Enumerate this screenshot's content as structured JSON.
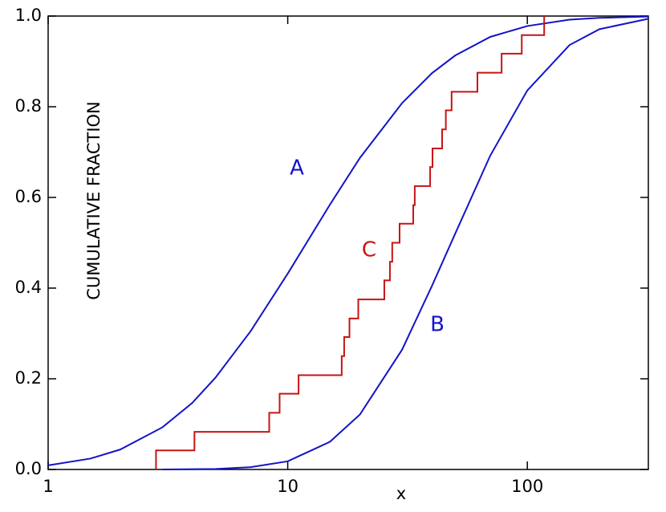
{
  "chart_data": {
    "type": "line",
    "x_label": "x",
    "y_label": "CUMULATIVE  FRACTION",
    "log_x": true,
    "xlim": [
      1,
      320
    ],
    "ylim": [
      0,
      1
    ],
    "xticks": [
      1,
      10,
      100
    ],
    "yticks": [
      {
        "value": 0,
        "label": "0.0"
      },
      {
        "value": 0.2,
        "label": "0.2"
      },
      {
        "value": 0.4,
        "label": "0.4"
      },
      {
        "value": 0.6,
        "label": "0.6"
      },
      {
        "value": 0.8,
        "label": "0.8"
      },
      {
        "value": 1,
        "label": "1.0"
      }
    ],
    "series": [
      {
        "name": "A",
        "color": "#1414c8",
        "step": false,
        "x": [
          1,
          1.5,
          2,
          3,
          4,
          5,
          7,
          10,
          15,
          20,
          30,
          40,
          50,
          70,
          100,
          150,
          200,
          320
        ],
        "values": [
          0.009,
          0.024,
          0.044,
          0.093,
          0.147,
          0.203,
          0.305,
          0.432,
          0.584,
          0.687,
          0.808,
          0.874,
          0.913,
          0.954,
          0.978,
          0.992,
          0.996,
          0.999
        ]
      },
      {
        "name": "B",
        "color": "#1414c8",
        "step": false,
        "x": [
          3,
          5,
          7,
          10,
          15,
          20,
          30,
          40,
          50,
          70,
          100,
          150,
          200,
          320
        ],
        "values": [
          0,
          0.001,
          0.005,
          0.018,
          0.061,
          0.121,
          0.264,
          0.405,
          0.52,
          0.692,
          0.836,
          0.936,
          0.971,
          0.994
        ]
      },
      {
        "name": "C",
        "color": "#c81414",
        "step": true,
        "x": [
          2.82,
          4.08,
          8.37,
          9.25,
          11.1,
          16.8,
          17.2,
          18.1,
          19.7,
          25.3,
          26.7,
          27.3,
          29.3,
          33.4,
          33.9,
          39.3,
          40.2,
          44.1,
          45.7,
          48.3,
          61.9,
          78.1,
          94.8,
          117.6
        ],
        "values": [
          0.042,
          0.083,
          0.125,
          0.167,
          0.208,
          0.25,
          0.292,
          0.333,
          0.375,
          0.417,
          0.458,
          0.5,
          0.542,
          0.583,
          0.625,
          0.667,
          0.708,
          0.75,
          0.792,
          0.833,
          0.875,
          0.917,
          0.958,
          1.0
        ]
      }
    ]
  }
}
